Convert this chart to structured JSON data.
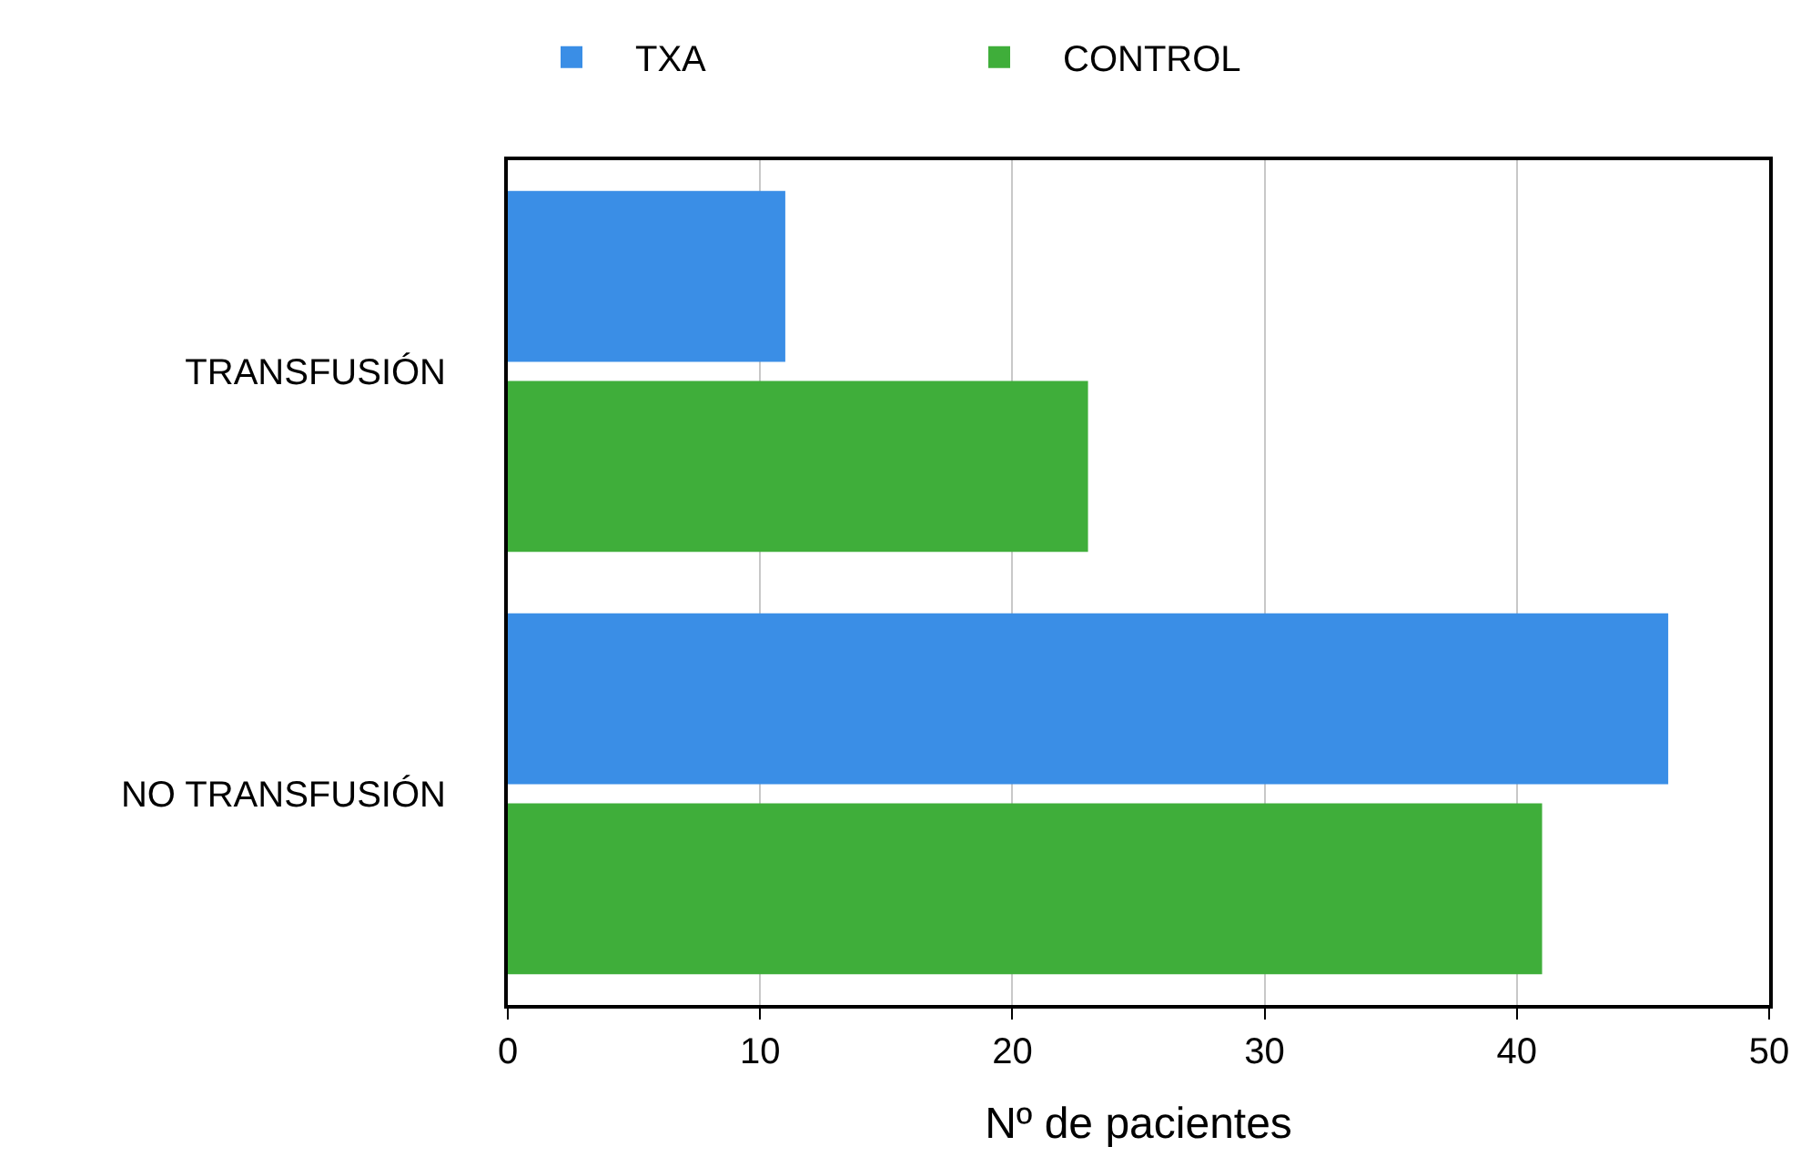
{
  "chart_data": {
    "type": "bar",
    "orientation": "horizontal",
    "categories": [
      "TRANSFUSIÓN",
      "NO TRANSFUSIÓN"
    ],
    "series": [
      {
        "name": "TXA",
        "color": "#3a8ee6",
        "values": [
          11,
          46
        ]
      },
      {
        "name": "CONTROL",
        "color": "#3fae3a",
        "values": [
          23,
          41
        ]
      }
    ],
    "xlabel": "Nº de pacientes",
    "xlim": [
      0,
      50
    ],
    "xticks": [
      0,
      10,
      20,
      30,
      40,
      50
    ],
    "grid": "x",
    "legend": "top"
  }
}
